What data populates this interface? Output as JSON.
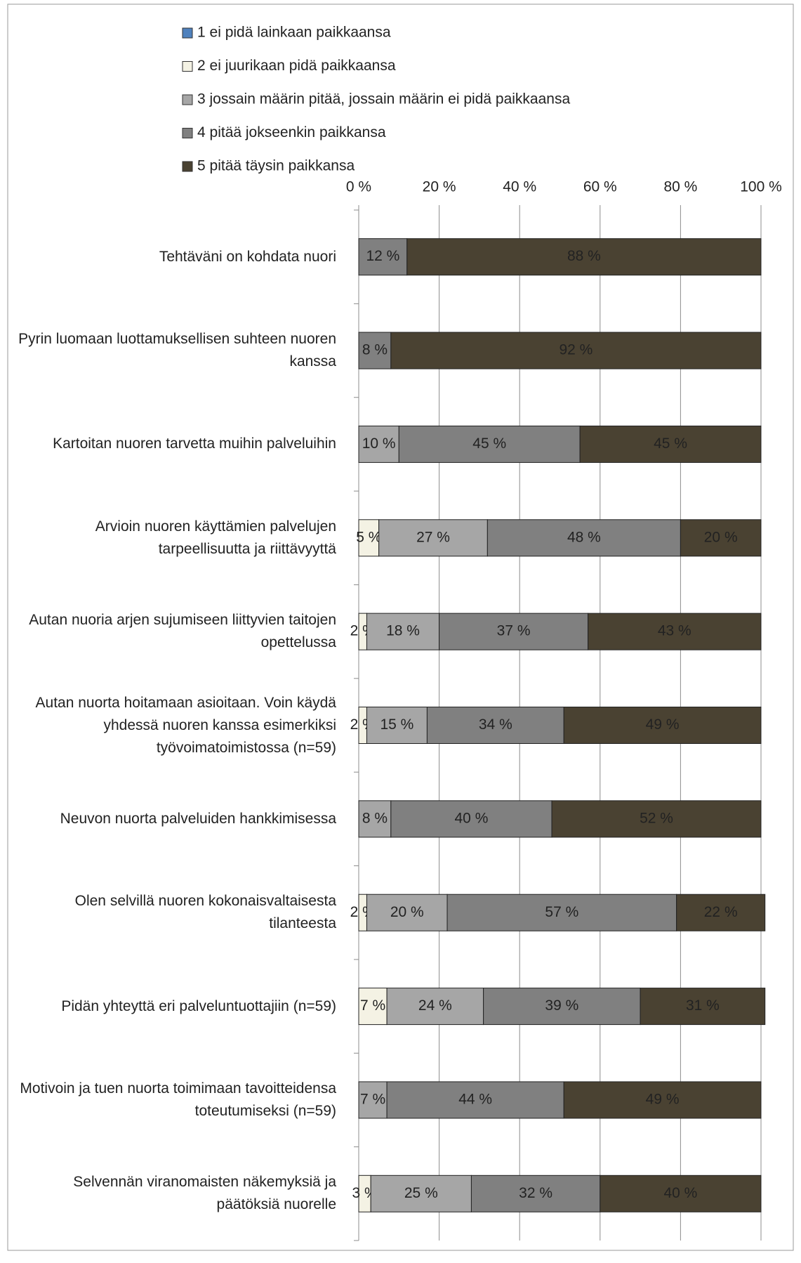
{
  "chart_data": {
    "type": "stacked-barh",
    "categories": [
      "Tehtäväni on kohdata nuori",
      "Pyrin luomaan luottamuksellisen suhteen nuoren kanssa",
      "Kartoitan nuoren tarvetta muihin palveluihin",
      "Arvioin nuoren käyttämien palvelujen tarpeellisuutta ja riittävyyttä",
      "Autan nuoria arjen sujumiseen liittyvien taitojen opettelussa",
      "Autan nuorta hoitamaan asioitaan. Voin käydä yhdessä nuoren kanssa esimerkiksi työvoimatoimistossa (n=59)",
      "Neuvon nuorta palveluiden hankkimisessa",
      "Olen selvillä nuoren kokonaisvaltaisesta tilanteesta",
      "Pidän yhteyttä eri palveluntuottajiin (n=59)",
      "Motivoin ja tuen nuorta toimimaan tavoitteidensa toteutumiseksi (n=59)",
      "Selvennän viranomaisten näkemyksiä ja päätöksiä nuorelle"
    ],
    "series": [
      {
        "name": "1 ei pidä lainkaan paikkaansa",
        "color": "#4f81bd",
        "values": [
          0,
          0,
          0,
          0,
          0,
          0,
          0,
          0,
          0,
          0,
          0
        ],
        "value_labels": [
          null,
          null,
          null,
          null,
          null,
          null,
          null,
          null,
          null,
          null,
          null
        ]
      },
      {
        "name": "2 ei juurikaan pidä paikkaansa",
        "color": "#f4f2e4",
        "values": [
          0,
          0,
          0,
          5,
          2,
          2,
          0,
          2,
          7,
          0,
          3
        ],
        "value_labels": [
          null,
          null,
          null,
          "5 %",
          "2 %",
          "2 %",
          null,
          "2 %",
          "7 %",
          null,
          "3 %"
        ]
      },
      {
        "name": "3 jossain määrin pitää, jossain määrin ei pidä paikkaansa",
        "color": "#a6a6a6",
        "values": [
          0,
          0,
          10,
          27,
          18,
          15,
          8,
          20,
          24,
          7,
          25
        ],
        "value_labels": [
          null,
          null,
          "10 %",
          "27 %",
          "18 %",
          "15 %",
          "8 %",
          "20 %",
          "24 %",
          "7 %",
          "25 %"
        ]
      },
      {
        "name": "4 pitää jokseenkin paikkansa",
        "color": "#808080",
        "values": [
          12,
          8,
          45,
          48,
          37,
          34,
          40,
          57,
          39,
          44,
          32
        ],
        "value_labels": [
          "12 %",
          "8 %",
          "45 %",
          "48 %",
          "37 %",
          "34 %",
          "40 %",
          "57 %",
          "39 %",
          "44 %",
          "32 %"
        ]
      },
      {
        "name": "5 pitää täysin paikkansa",
        "color": "#4a4232",
        "values": [
          88,
          92,
          45,
          20,
          43,
          49,
          52,
          22,
          31,
          49,
          40
        ],
        "value_labels": [
          "88 %",
          "92 %",
          "45 %",
          "20 %",
          "43 %",
          "49 %",
          "52 %",
          "22 %",
          "31 %",
          "49 %",
          "40 %"
        ]
      }
    ],
    "xlim": [
      0,
      100
    ],
    "xticks": [
      {
        "value": 0,
        "label": "0 %"
      },
      {
        "value": 20,
        "label": "20 %"
      },
      {
        "value": 40,
        "label": "40 %"
      },
      {
        "value": 60,
        "label": "60 %"
      },
      {
        "value": 80,
        "label": "80 %"
      },
      {
        "value": 100,
        "label": "100 %"
      }
    ],
    "grid": true,
    "legend": "top"
  }
}
